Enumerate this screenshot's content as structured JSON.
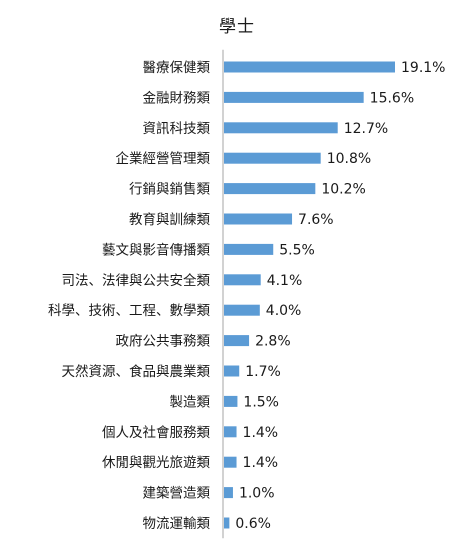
{
  "chart_data": {
    "type": "bar",
    "orientation": "horizontal",
    "title": "學士",
    "xlabel": "",
    "ylabel": "",
    "categories": [
      "醫療保健類",
      "金融財務類",
      "資訊科技類",
      "企業經營管理類",
      "行銷與銷售類",
      "教育與訓練類",
      "藝文與影音傳播類",
      "司法、法律與公共安全類",
      "科學、技術、工程、數學類",
      "政府公共事務類",
      "天然資源、食品與農業類",
      "製造類",
      "個人及社會服務類",
      "休閒與觀光旅遊類",
      "建築營造類",
      "物流運輸類"
    ],
    "values": [
      19.1,
      15.6,
      12.7,
      10.8,
      10.2,
      7.6,
      5.5,
      4.1,
      4.0,
      2.8,
      1.7,
      1.5,
      1.4,
      1.4,
      1.0,
      0.6
    ],
    "value_labels": [
      "19.1%",
      "15.6%",
      "12.7%",
      "10.8%",
      "10.2%",
      "7.6%",
      "5.5%",
      "4.1%",
      "4.0%",
      "2.8%",
      "1.7%",
      "1.5%",
      "1.4%",
      "1.4%",
      "1.0%",
      "0.6%"
    ],
    "unit": "%",
    "bar_color": "#5b9bd5",
    "axis_color": "#a6a6a6",
    "grid": false,
    "legend": "none"
  }
}
